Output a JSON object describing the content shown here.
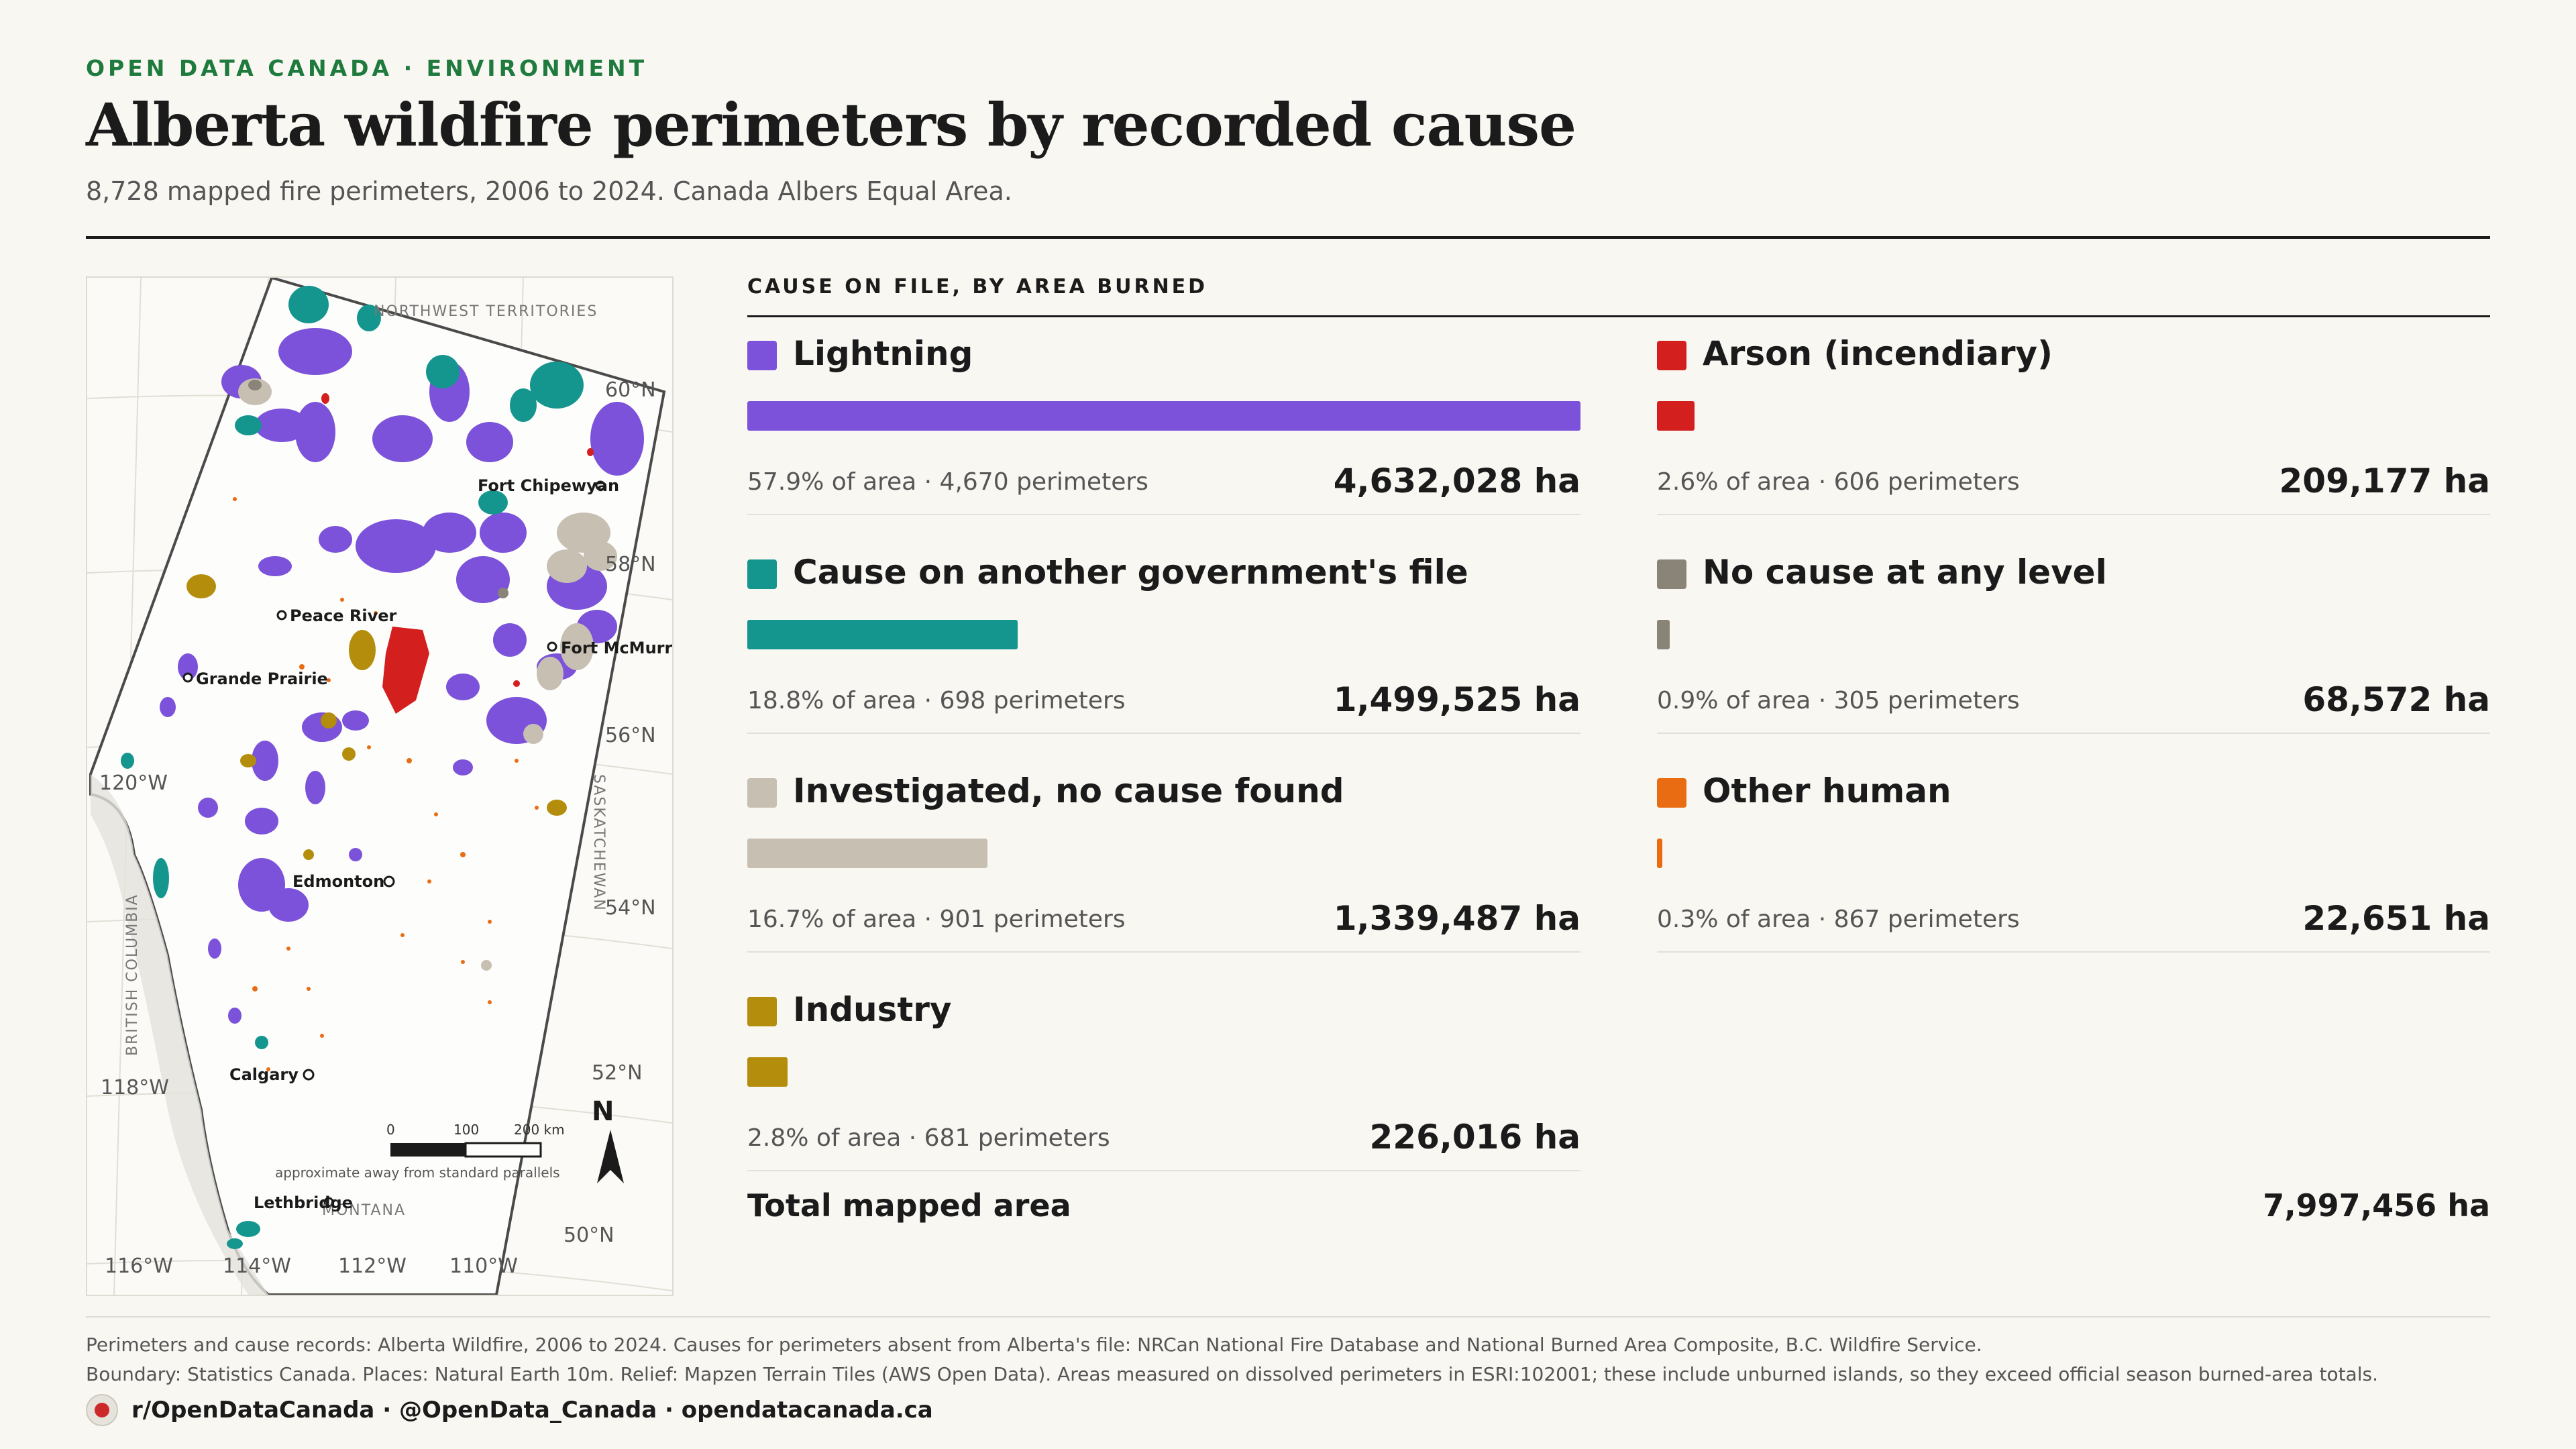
{
  "header": {
    "eyebrow": "OPEN DATA CANADA · ENVIRONMENT",
    "title": "Alberta wildfire perimeters by recorded cause",
    "subtitle": "8,728 mapped fire perimeters, 2006 to 2024. Canada Albers Equal Area."
  },
  "map": {
    "neighbors": {
      "north": "NORTHWEST TERRITORIES",
      "west": "BRITISH COLUMBIA",
      "east": "SASKATCHEWAN",
      "south": "MONTANA"
    },
    "graticule": {
      "lat_60": "60°N",
      "lat_58": "58°N",
      "lat_56": "56°N",
      "lat_54": "54°N",
      "lat_52": "52°N",
      "lat_50": "50°N",
      "lon_120": "120°W",
      "lon_118": "118°W",
      "lon_116": "116°W",
      "lon_114": "114°W",
      "lon_112": "112°W",
      "lon_110": "110°W"
    },
    "cities": {
      "fort_chipewyan": "Fort Chipewyan",
      "peace_river": "Peace River",
      "fort_mcmurray": "Fort McMurray",
      "grande_prairie": "Grande Prairie",
      "edmonton": "Edmonton",
      "calgary": "Calgary",
      "lethbridge": "Lethbridge"
    },
    "scale": {
      "tick_0": "0",
      "tick_100": "100",
      "tick_200": "200 km",
      "note": "approximate away from standard parallels"
    },
    "north_label": "N",
    "fill_colors": {
      "lightning": "#7b52d9",
      "other_gov": "#14968e",
      "investigated": "#c8bfb3",
      "industry": "#b48d0c",
      "arson": "#d41f1f",
      "no_cause": "#8a8377",
      "other_human": "#ea6c12"
    }
  },
  "legend": {
    "header": "CAUSE ON FILE, BY AREA BURNED",
    "causes": [
      {
        "name": "Lightning",
        "color": "#7b52d9",
        "share": 0.579,
        "meta": "57.9% of area · 4,670 perimeters",
        "value": "4,632,028 ha"
      },
      {
        "name": "Cause on another government's file",
        "color": "#14968e",
        "share": 0.188,
        "meta": "18.8% of area · 698 perimeters",
        "value": "1,499,525 ha"
      },
      {
        "name": "Investigated, no cause found",
        "color": "#c8bfb3",
        "share": 0.167,
        "meta": "16.7% of area · 901 perimeters",
        "value": "1,339,487 ha"
      },
      {
        "name": "Industry",
        "color": "#b48d0c",
        "share": 0.028,
        "meta": "2.8% of area · 681 perimeters",
        "value": "226,016 ha"
      },
      {
        "name": "Arson (incendiary)",
        "color": "#d41f1f",
        "share": 0.026,
        "meta": "2.6% of area · 606 perimeters",
        "value": "209,177 ha"
      },
      {
        "name": "No cause at any level",
        "color": "#8a8377",
        "share": 0.009,
        "meta": "0.9% of area · 305 perimeters",
        "value": "68,572 ha"
      },
      {
        "name": "Other human",
        "color": "#ea6c12",
        "share": 0.003,
        "meta": "0.3% of area · 867 perimeters",
        "value": "22,651 ha"
      }
    ],
    "total_label": "Total mapped area",
    "total_value": "7,997,456 ha"
  },
  "footer": {
    "line1": "Perimeters and cause records: Alberta Wildfire, 2006 to 2024. Causes for perimeters absent from Alberta's file: NRCan National Fire Database and National Burned Area Composite, B.C. Wildfire Service.",
    "line2": "Boundary: Statistics Canada. Places: Natural Earth 10m. Relief: Mapzen Terrain Tiles (AWS Open Data). Areas measured on dissolved perimeters in ESRI:102001; these include unburned islands, so they exceed official season burned-area totals.",
    "brand": "r/OpenDataCanada · @OpenData_Canada · opendatacanada.ca"
  }
}
